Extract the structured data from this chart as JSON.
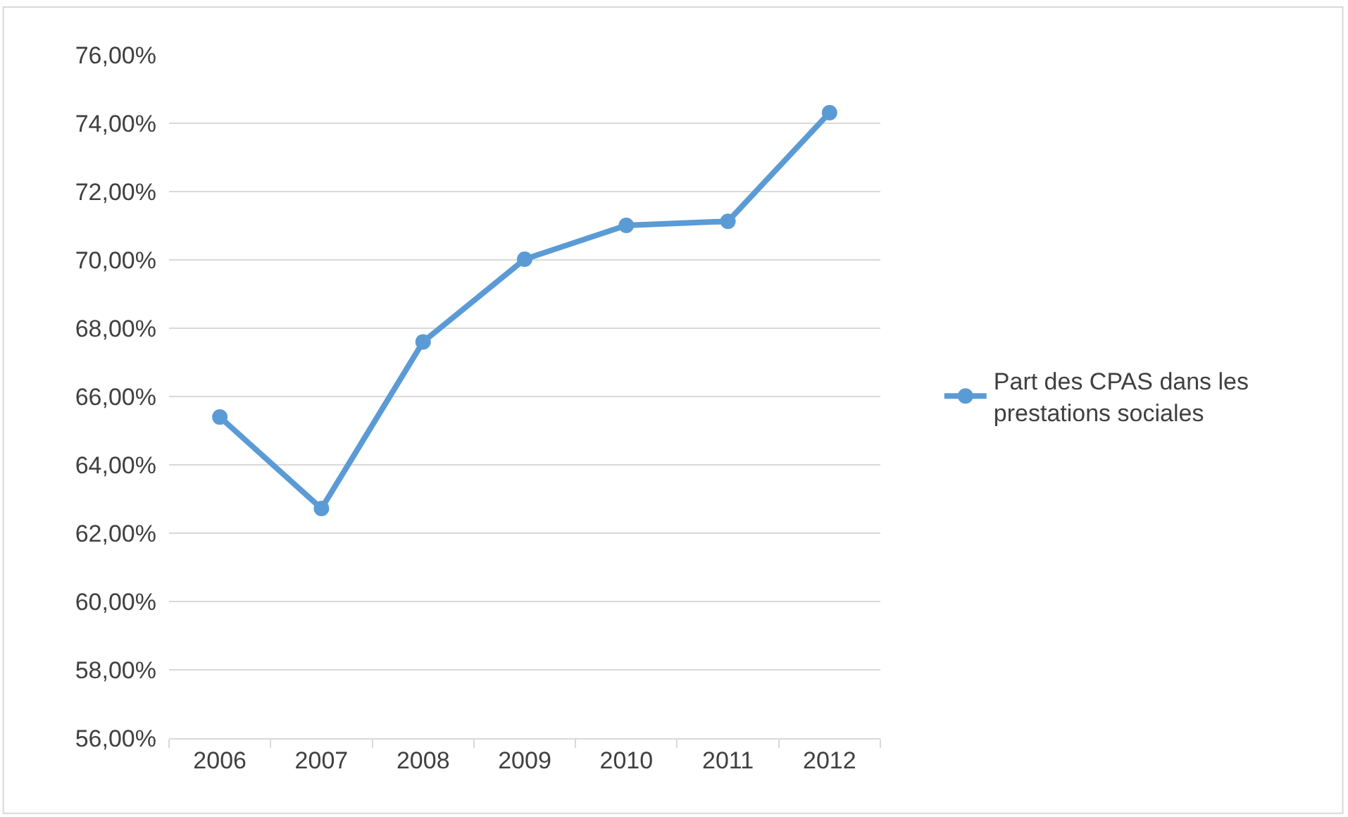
{
  "chart_data": {
    "type": "line",
    "categories": [
      "2006",
      "2007",
      "2008",
      "2009",
      "2010",
      "2011",
      "2012"
    ],
    "series": [
      {
        "name": "Part des CPAS dans les prestations sociales",
        "color": "#5b9bd5",
        "values": [
          65.4,
          62.72,
          67.6,
          70.02,
          71.01,
          71.13,
          74.31
        ]
      }
    ],
    "ylim": [
      56,
      76
    ],
    "yticks": [
      {
        "value": 56,
        "label": "56,00%"
      },
      {
        "value": 58,
        "label": "58,00%"
      },
      {
        "value": 60,
        "label": "60,00%"
      },
      {
        "value": 62,
        "label": "62,00%"
      },
      {
        "value": 64,
        "label": "64,00%"
      },
      {
        "value": 66,
        "label": "66,00%"
      },
      {
        "value": 68,
        "label": "68,00%"
      },
      {
        "value": 70,
        "label": "70,00%"
      },
      {
        "value": 72,
        "label": "72,00%"
      },
      {
        "value": 74,
        "label": "74,00%"
      },
      {
        "value": 76,
        "label": "76,00%"
      }
    ],
    "grid": "y",
    "legend": "right",
    "marker": "circle",
    "line_style": "solid"
  }
}
